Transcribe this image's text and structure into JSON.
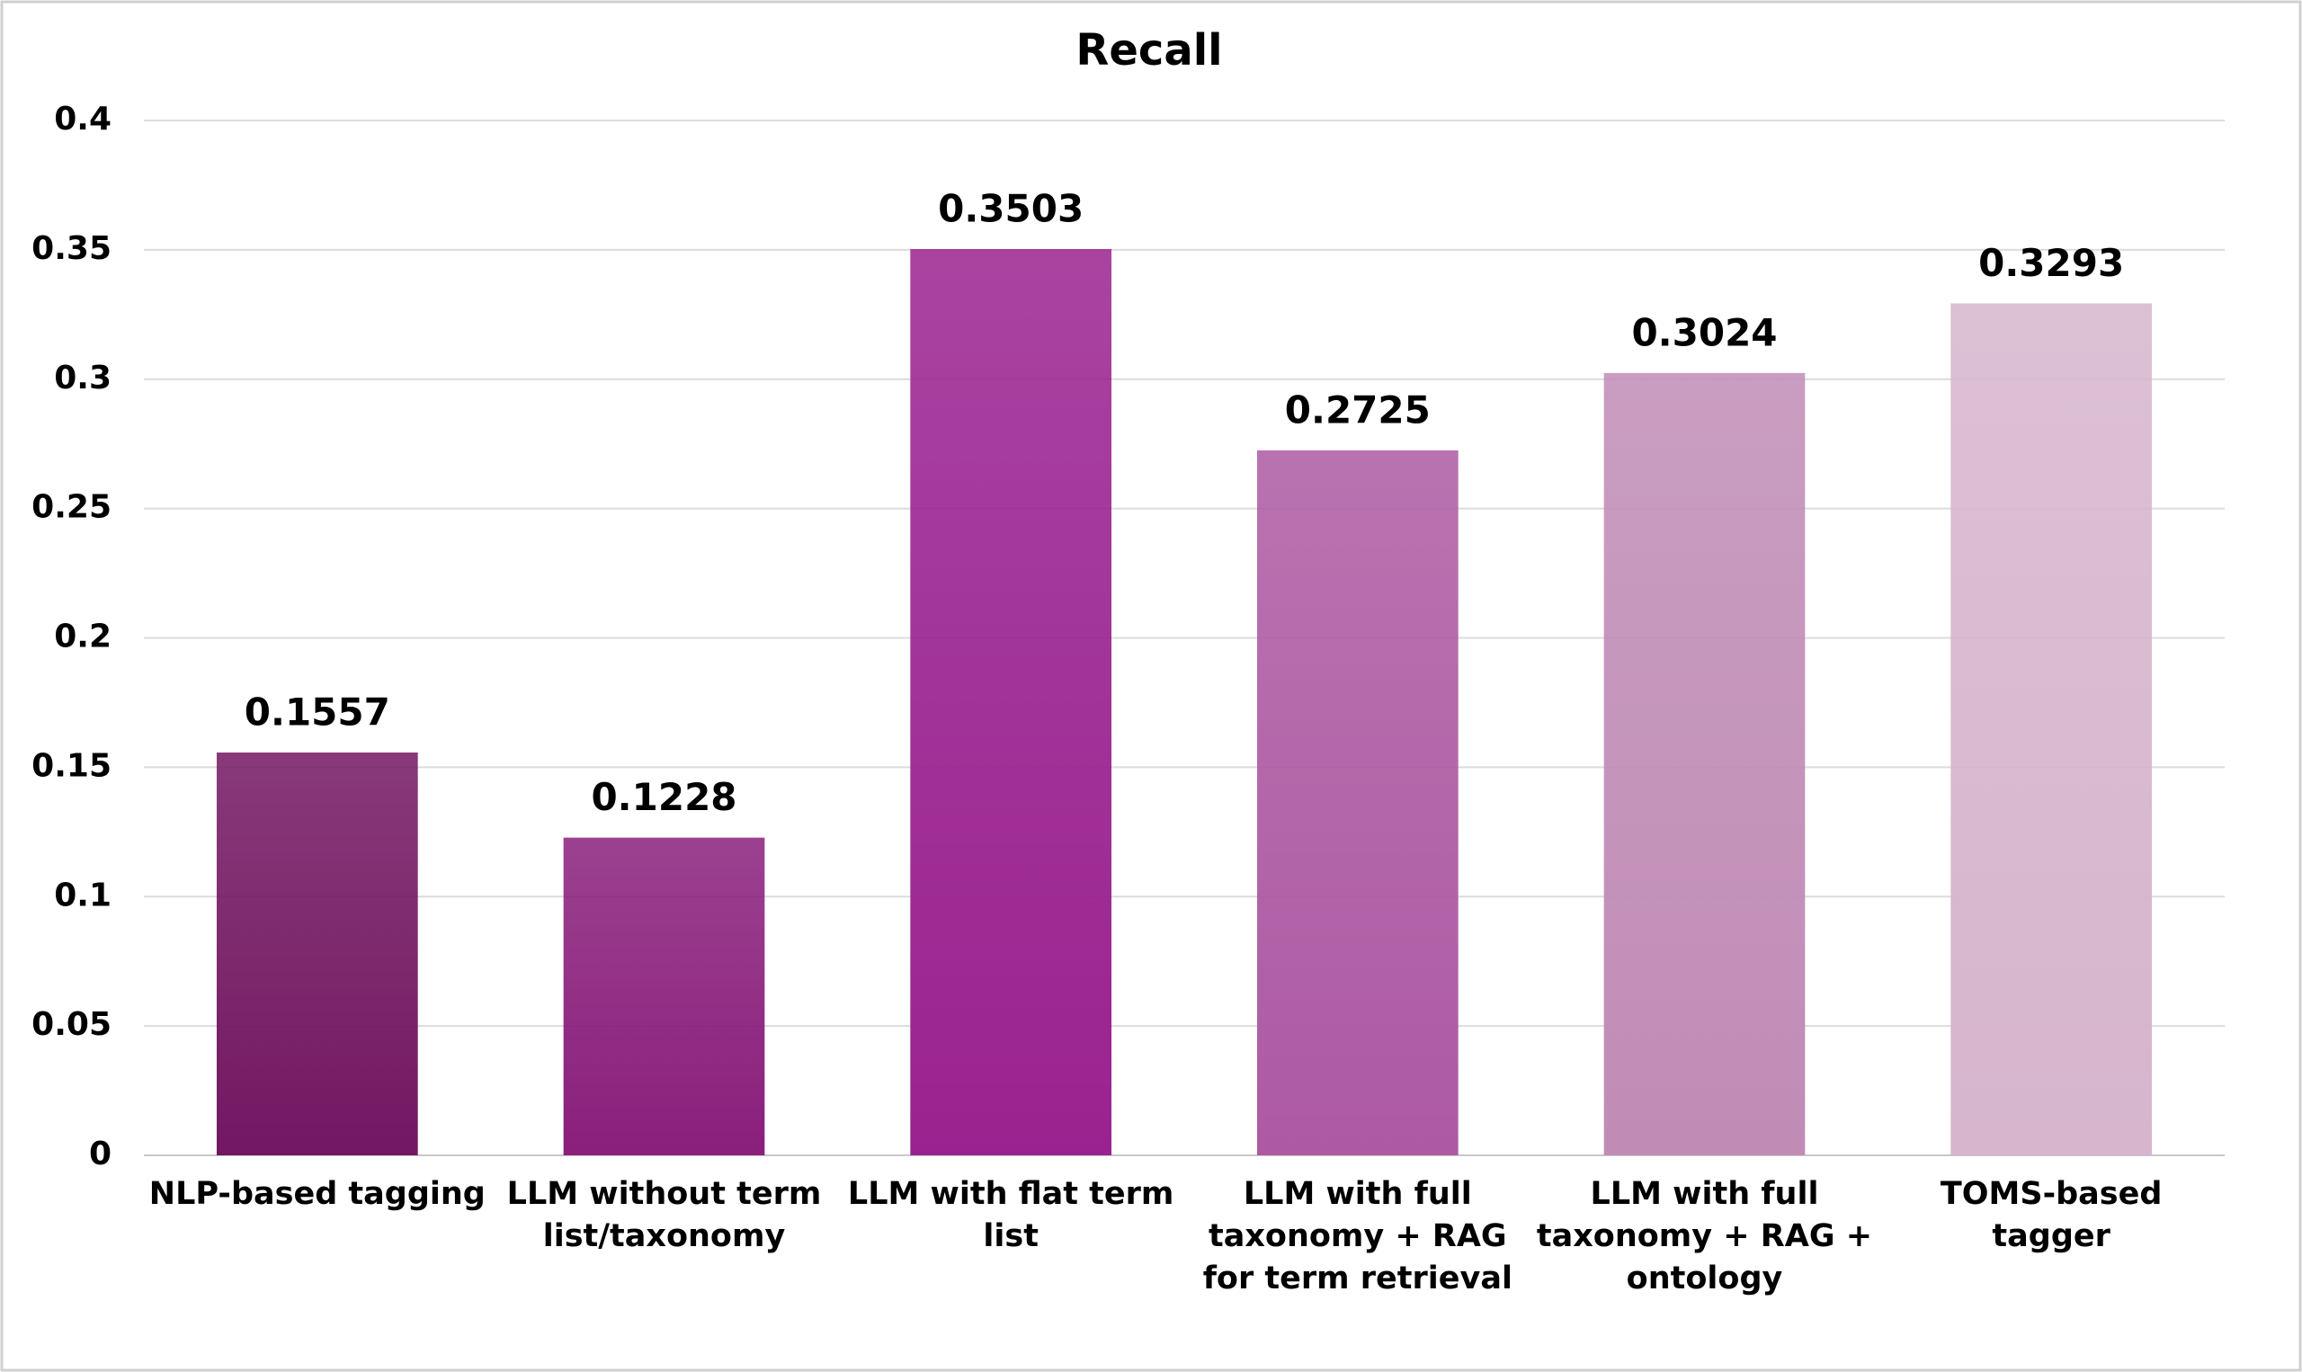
{
  "chart_data": {
    "type": "bar",
    "title": "Recall",
    "categories": [
      "NLP-based tagging",
      "LLM without term list/taxonomy",
      "LLM with flat term list",
      "LLM with full taxonomy + RAG for term retrieval",
      "LLM with full taxonomy + RAG + ontology",
      "TOMS-based tagger"
    ],
    "values": [
      0.1557,
      0.1228,
      0.3503,
      0.2725,
      0.3024,
      0.3293
    ],
    "colors": [
      "#731762",
      "#8a1f7c",
      "#9a2290",
      "#ad5aa3",
      "#c08cb6",
      "#d6b5cd"
    ],
    "ylim": [
      0,
      0.4
    ],
    "yticks": [
      0,
      0.05,
      0.1,
      0.15,
      0.2,
      0.25,
      0.3,
      0.35,
      0.4
    ],
    "grid": true
  }
}
